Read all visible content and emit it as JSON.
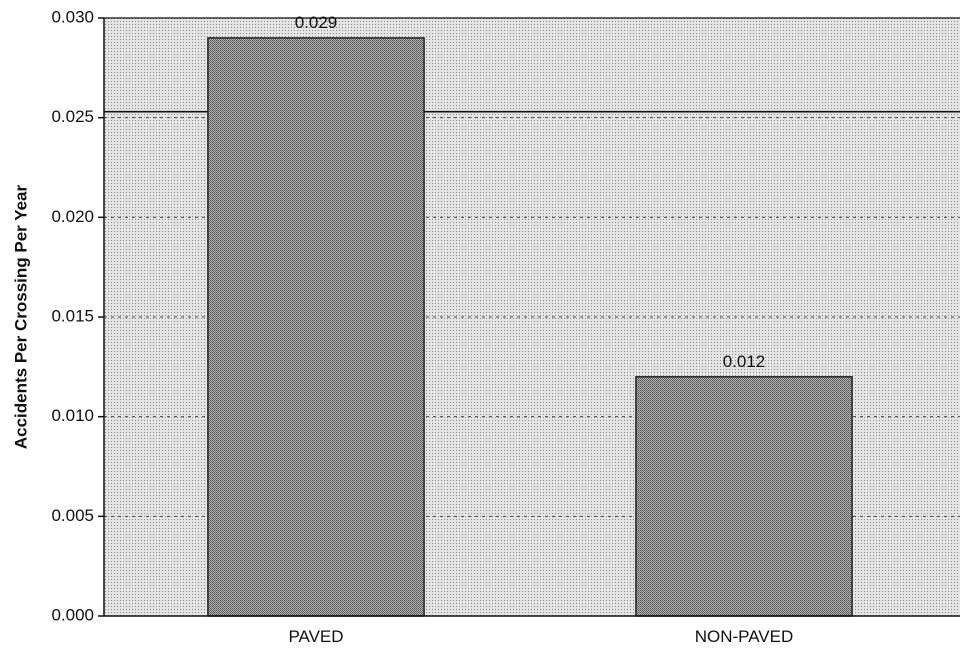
{
  "chart_data": {
    "type": "bar",
    "categories": [
      "PAVED",
      "NON-PAVED"
    ],
    "values": [
      0.029,
      0.012
    ],
    "data_labels": [
      "0.029",
      "0.012"
    ],
    "title": "",
    "xlabel": "",
    "ylabel": "Accidents Per Crossing Per Year",
    "ylim": [
      0,
      0.03
    ],
    "yticks": [
      0.0,
      0.005,
      0.01,
      0.015,
      0.02,
      0.025,
      0.03
    ],
    "ytick_labels": [
      "0.000",
      "0.005",
      "0.010",
      "0.015",
      "0.020",
      "0.025",
      "0.030"
    ],
    "reference_line": 0.0253,
    "grid": true,
    "colors": {
      "plot_background": "#d9d9d9",
      "bar_fill": "#9c9c9c",
      "bar_stroke": "#222222",
      "grid": "#444444"
    }
  }
}
